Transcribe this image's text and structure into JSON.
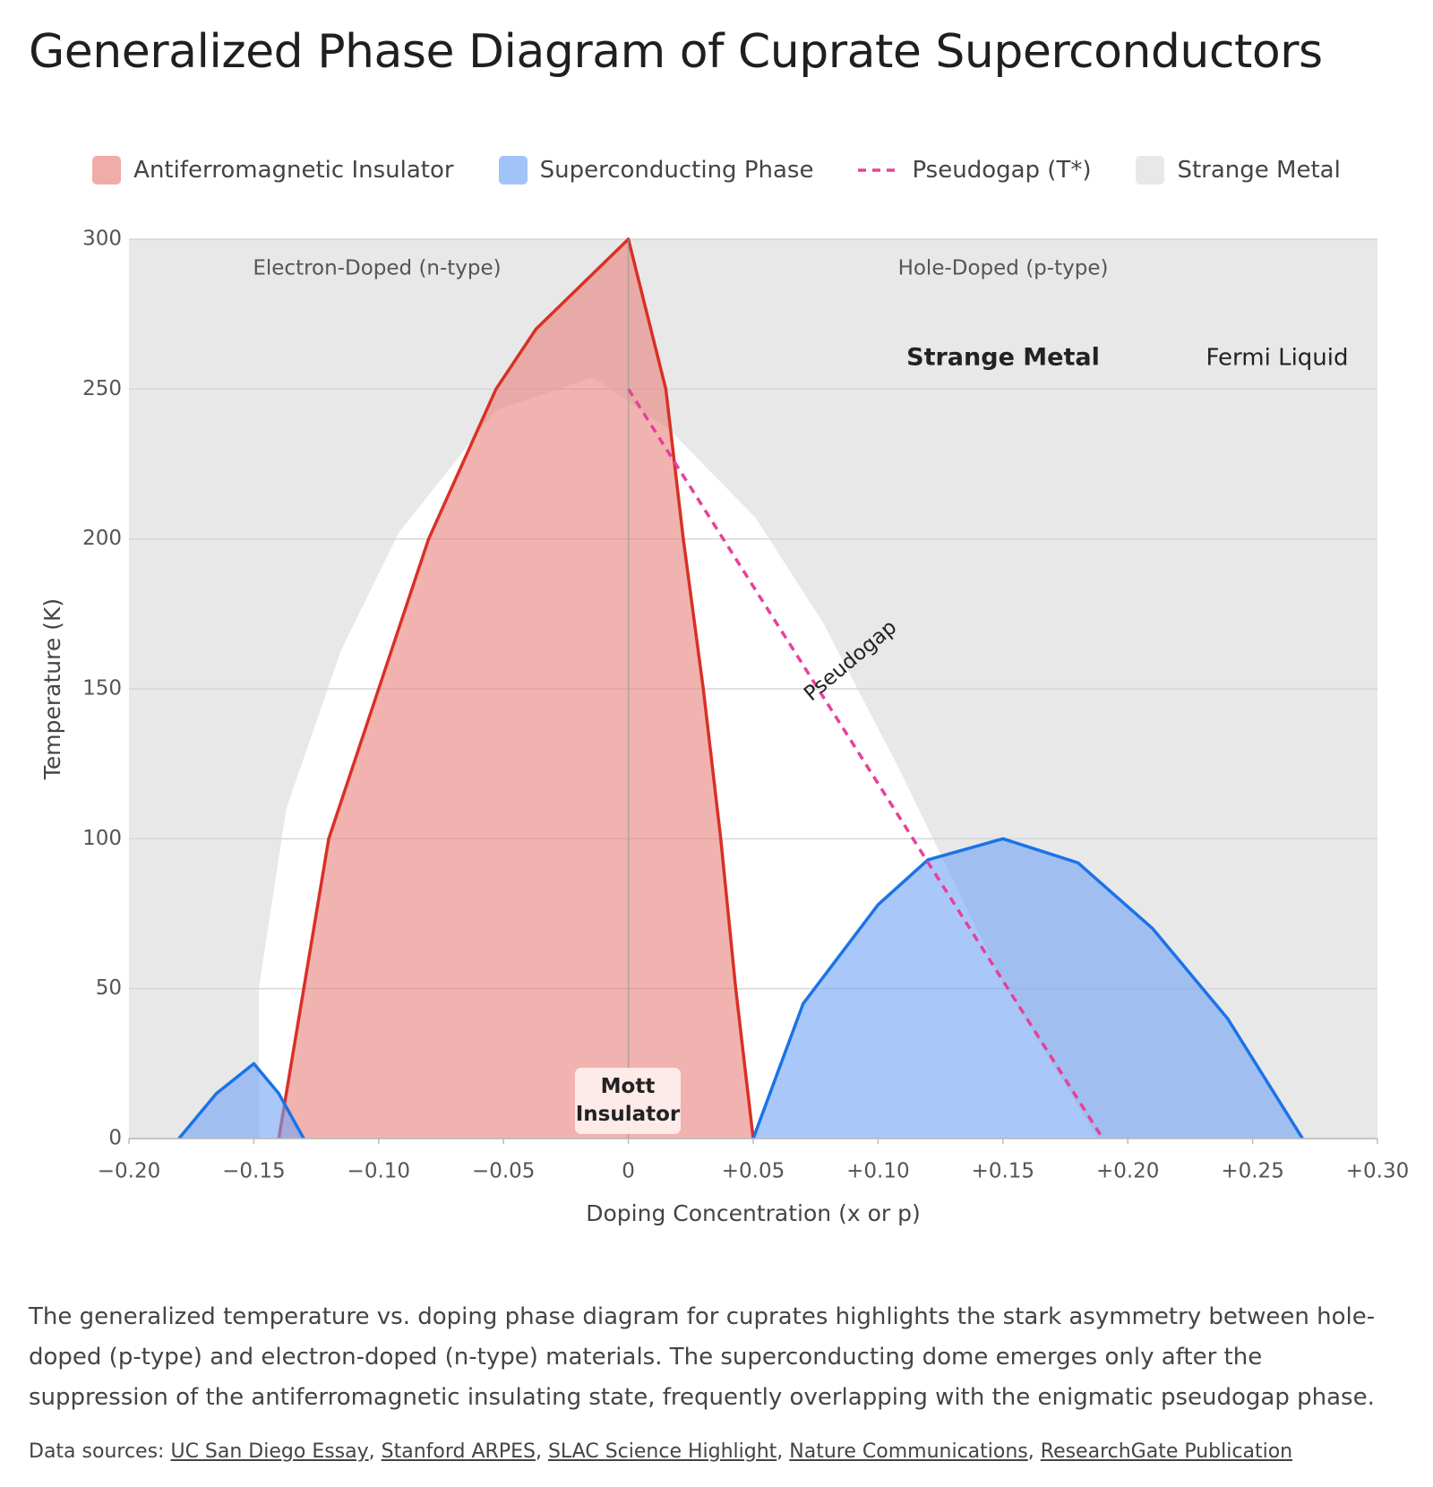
{
  "chart_data": {
    "type": "area",
    "title": "Generalized Phase Diagram of Cuprate Superconductors",
    "x_label": "Doping Concentration (x or p)",
    "y_label": "Temperature (K)",
    "xlim": [
      -0.2,
      0.3
    ],
    "xticks": [
      {
        "value": -0.2,
        "label": "−0.20"
      },
      {
        "value": -0.15,
        "label": "−0.15"
      },
      {
        "value": -0.1,
        "label": "−0.10"
      },
      {
        "value": -0.05,
        "label": "−0.05"
      },
      0,
      {
        "value": 0.05,
        "label": "+0.05"
      },
      {
        "value": 0.1,
        "label": "+0.10"
      },
      {
        "value": 0.15,
        "label": "+0.15"
      },
      {
        "value": 0.2,
        "label": "+0.20"
      },
      {
        "value": 0.25,
        "label": "+0.25"
      },
      {
        "value": 0.3,
        "label": "+0.30"
      }
    ],
    "ylim": [
      0,
      300
    ],
    "yticks": [
      0,
      50,
      100,
      150,
      200,
      250,
      300
    ],
    "grid": true,
    "legend": "top",
    "series": [
      {
        "name": "Antiferromagnetic Insulator",
        "type": "area",
        "color": "#e8807a",
        "line_color": "#d93025",
        "parts": [
          {
            "x": [
              -0.14,
              -0.13,
              -0.12,
              -0.1,
              -0.08,
              -0.053,
              -0.037,
              0,
              0.015,
              0.022,
              0.03,
              0.037,
              0.043,
              0.05
            ],
            "values": [
              0,
              50,
              100,
              150,
              200,
              250,
              270,
              300,
              250,
              200,
              150,
              100,
              50,
              0
            ]
          }
        ]
      },
      {
        "name": "Superconducting Phase",
        "type": "area",
        "color": "#6fa3f5",
        "line_color": "#1a73e8",
        "parts": [
          {
            "x": [
              -0.18,
              -0.165,
              -0.15,
              -0.14,
              -0.13
            ],
            "values": [
              0,
              15,
              25,
              15,
              0
            ]
          },
          {
            "x": [
              0.05,
              0.07,
              0.1,
              0.12,
              0.15,
              0.18,
              0.21,
              0.24,
              0.27
            ],
            "values": [
              0,
              45,
              78,
              93,
              100,
              92,
              70,
              40,
              0
            ]
          }
        ]
      },
      {
        "name": "Pseudogap (T*)",
        "type": "line",
        "color": "#e8409a",
        "dashed": true,
        "parts": [
          {
            "x": [
              0,
              0.19
            ],
            "values": [
              250,
              0
            ]
          }
        ]
      },
      {
        "name": "Strange Metal",
        "type": "region",
        "color": "#e8e8e8",
        "parts": [
          {
            "x": [
              -0.148,
              -0.137,
              -0.115,
              -0.092,
              -0.053,
              -0.014,
              0.017,
              0.051,
              0.078,
              0.108,
              0.15,
              0.188
            ],
            "values": [
              50,
              110,
              163,
              202,
              243,
              254,
              236,
              207,
              172,
              124,
              52,
              0
            ]
          }
        ]
      }
    ],
    "annotations": {
      "electron_doped": "Electron-Doped (n-type)",
      "hole_doped": "Hole-Doped (p-type)",
      "strange_metal": "Strange Metal",
      "fermi_liquid": "Fermi Liquid",
      "pseudogap": "Pseudogap",
      "mott": "Mott Insulator"
    }
  },
  "description": "The generalized temperature vs. doping phase diagram for cuprates highlights the stark asymmetry between hole-doped (p-type) and electron-doped (n-type) materials. The superconducting dome emerges only after the suppression of the antiferromagnetic insulating state, frequently overlapping with the enigmatic pseudogap phase.",
  "sources_label": "Data sources:",
  "sources": [
    "UC San Diego Essay",
    "Stanford ARPES",
    "SLAC Science Highlight",
    "Nature Communications",
    "ResearchGate Publication"
  ]
}
